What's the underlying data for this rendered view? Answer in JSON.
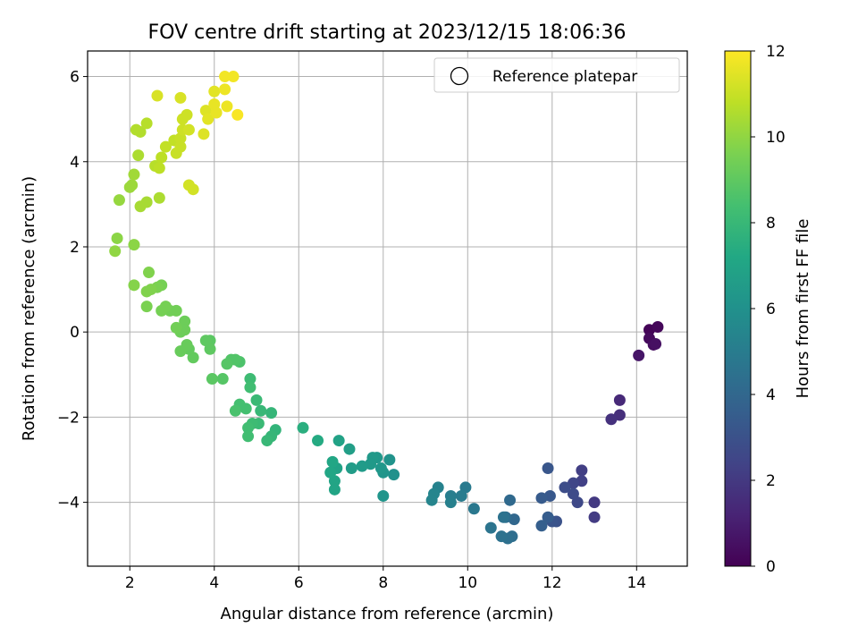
{
  "chart_data": {
    "type": "scatter",
    "title": "FOV centre drift starting at 2023/12/15 18:06:36",
    "xlabel": "Angular distance from reference (arcmin)",
    "ylabel": "Rotation from reference (arcmin)",
    "xlim": [
      1.0,
      15.2
    ],
    "ylim": [
      -5.5,
      6.6
    ],
    "xticks": [
      2,
      4,
      6,
      8,
      10,
      12,
      14
    ],
    "yticks": [
      -4,
      -2,
      0,
      2,
      4,
      6
    ],
    "grid": true,
    "legend": {
      "position": "upper right",
      "entries": [
        {
          "label": "Reference platepar",
          "marker": "open-circle"
        }
      ]
    },
    "colorbar": {
      "label": "Hours from first FF file",
      "colormap": "viridis",
      "range": [
        0,
        12
      ],
      "ticks": [
        0,
        2,
        4,
        6,
        8,
        10,
        12
      ]
    },
    "points": [
      {
        "x": 14.3,
        "y": 0.05,
        "c": 0.1
      },
      {
        "x": 14.5,
        "y": 0.12,
        "c": 0.2
      },
      {
        "x": 14.3,
        "y": -0.15,
        "c": 0.3
      },
      {
        "x": 14.4,
        "y": -0.3,
        "c": 0.4
      },
      {
        "x": 14.45,
        "y": -0.28,
        "c": 0.5
      },
      {
        "x": 14.05,
        "y": -0.55,
        "c": 0.7
      },
      {
        "x": 13.6,
        "y": -1.6,
        "c": 1.4
      },
      {
        "x": 13.6,
        "y": -1.95,
        "c": 1.6
      },
      {
        "x": 13.4,
        "y": -2.05,
        "c": 1.7
      },
      {
        "x": 13.0,
        "y": -4.0,
        "c": 2.0
      },
      {
        "x": 13.0,
        "y": -4.35,
        "c": 2.1
      },
      {
        "x": 12.7,
        "y": -3.25,
        "c": 2.2
      },
      {
        "x": 12.7,
        "y": -3.5,
        "c": 2.3
      },
      {
        "x": 12.5,
        "y": -3.55,
        "c": 2.5
      },
      {
        "x": 12.6,
        "y": -4.0,
        "c": 2.6
      },
      {
        "x": 12.5,
        "y": -3.8,
        "c": 2.7
      },
      {
        "x": 12.3,
        "y": -3.65,
        "c": 2.8
      },
      {
        "x": 12.1,
        "y": -4.45,
        "c": 3.0
      },
      {
        "x": 12.0,
        "y": -4.45,
        "c": 3.1
      },
      {
        "x": 11.9,
        "y": -3.2,
        "c": 3.2
      },
      {
        "x": 11.95,
        "y": -3.85,
        "c": 3.3
      },
      {
        "x": 11.75,
        "y": -3.9,
        "c": 3.4
      },
      {
        "x": 11.9,
        "y": -4.35,
        "c": 3.5
      },
      {
        "x": 11.75,
        "y": -4.55,
        "c": 3.6
      },
      {
        "x": 11.1,
        "y": -4.4,
        "c": 4.0
      },
      {
        "x": 11.0,
        "y": -3.95,
        "c": 4.1
      },
      {
        "x": 10.9,
        "y": -4.35,
        "c": 4.2
      },
      {
        "x": 11.05,
        "y": -4.8,
        "c": 4.3
      },
      {
        "x": 10.95,
        "y": -4.85,
        "c": 4.4
      },
      {
        "x": 10.8,
        "y": -4.8,
        "c": 4.5
      },
      {
        "x": 10.85,
        "y": -4.35,
        "c": 4.5
      },
      {
        "x": 10.55,
        "y": -4.6,
        "c": 4.6
      },
      {
        "x": 10.15,
        "y": -4.15,
        "c": 4.8
      },
      {
        "x": 9.95,
        "y": -3.65,
        "c": 4.9
      },
      {
        "x": 9.85,
        "y": -3.85,
        "c": 5.0
      },
      {
        "x": 9.6,
        "y": -3.85,
        "c": 5.1
      },
      {
        "x": 9.6,
        "y": -4.0,
        "c": 5.2
      },
      {
        "x": 9.3,
        "y": -3.65,
        "c": 5.3
      },
      {
        "x": 9.2,
        "y": -3.8,
        "c": 5.4
      },
      {
        "x": 9.15,
        "y": -3.95,
        "c": 5.4
      },
      {
        "x": 8.25,
        "y": -3.35,
        "c": 6.0
      },
      {
        "x": 8.15,
        "y": -3.0,
        "c": 6.1
      },
      {
        "x": 8.0,
        "y": -3.85,
        "c": 6.2
      },
      {
        "x": 8.0,
        "y": -3.3,
        "c": 6.2
      },
      {
        "x": 7.95,
        "y": -3.2,
        "c": 6.3
      },
      {
        "x": 7.85,
        "y": -2.95,
        "c": 6.3
      },
      {
        "x": 7.75,
        "y": -2.95,
        "c": 6.4
      },
      {
        "x": 7.7,
        "y": -3.1,
        "c": 6.4
      },
      {
        "x": 7.5,
        "y": -3.15,
        "c": 6.5
      },
      {
        "x": 7.25,
        "y": -3.2,
        "c": 6.6
      },
      {
        "x": 7.2,
        "y": -2.75,
        "c": 6.7
      },
      {
        "x": 6.95,
        "y": -2.55,
        "c": 6.9
      },
      {
        "x": 6.9,
        "y": -3.2,
        "c": 6.9
      },
      {
        "x": 6.85,
        "y": -3.5,
        "c": 7.0
      },
      {
        "x": 6.85,
        "y": -3.7,
        "c": 7.0
      },
      {
        "x": 6.8,
        "y": -3.05,
        "c": 7.1
      },
      {
        "x": 6.75,
        "y": -3.3,
        "c": 7.1
      },
      {
        "x": 6.45,
        "y": -2.55,
        "c": 7.3
      },
      {
        "x": 6.1,
        "y": -2.25,
        "c": 7.5
      },
      {
        "x": 5.45,
        "y": -2.3,
        "c": 7.8
      },
      {
        "x": 5.35,
        "y": -1.9,
        "c": 7.9
      },
      {
        "x": 5.35,
        "y": -2.45,
        "c": 7.9
      },
      {
        "x": 5.25,
        "y": -2.55,
        "c": 8.0
      },
      {
        "x": 5.1,
        "y": -1.85,
        "c": 8.0
      },
      {
        "x": 5.05,
        "y": -2.15,
        "c": 8.1
      },
      {
        "x": 5.0,
        "y": -1.6,
        "c": 8.1
      },
      {
        "x": 4.9,
        "y": -2.15,
        "c": 8.2
      },
      {
        "x": 4.85,
        "y": -1.1,
        "c": 8.2
      },
      {
        "x": 4.85,
        "y": -1.3,
        "c": 8.3
      },
      {
        "x": 4.8,
        "y": -2.25,
        "c": 8.3
      },
      {
        "x": 4.8,
        "y": -2.45,
        "c": 8.3
      },
      {
        "x": 4.75,
        "y": -1.8,
        "c": 8.4
      },
      {
        "x": 4.6,
        "y": -1.7,
        "c": 8.4
      },
      {
        "x": 4.5,
        "y": -1.85,
        "c": 8.5
      },
      {
        "x": 4.6,
        "y": -0.7,
        "c": 8.6
      },
      {
        "x": 4.5,
        "y": -0.65,
        "c": 8.7
      },
      {
        "x": 4.4,
        "y": -0.65,
        "c": 8.7
      },
      {
        "x": 4.3,
        "y": -0.75,
        "c": 8.8
      },
      {
        "x": 4.2,
        "y": -1.1,
        "c": 8.8
      },
      {
        "x": 3.95,
        "y": -1.1,
        "c": 8.9
      },
      {
        "x": 3.9,
        "y": -0.2,
        "c": 8.9
      },
      {
        "x": 3.9,
        "y": -0.4,
        "c": 9.0
      },
      {
        "x": 3.8,
        "y": -0.2,
        "c": 9.0
      },
      {
        "x": 3.5,
        "y": -0.6,
        "c": 9.1
      },
      {
        "x": 3.4,
        "y": -0.4,
        "c": 9.1
      },
      {
        "x": 3.35,
        "y": -0.3,
        "c": 9.2
      },
      {
        "x": 3.2,
        "y": -0.45,
        "c": 9.2
      },
      {
        "x": 3.3,
        "y": 0.25,
        "c": 9.3
      },
      {
        "x": 3.3,
        "y": 0.05,
        "c": 9.3
      },
      {
        "x": 3.2,
        "y": 0.0,
        "c": 9.3
      },
      {
        "x": 3.1,
        "y": 0.1,
        "c": 9.4
      },
      {
        "x": 3.1,
        "y": 0.5,
        "c": 9.4
      },
      {
        "x": 2.95,
        "y": 0.5,
        "c": 9.4
      },
      {
        "x": 2.85,
        "y": 0.6,
        "c": 9.5
      },
      {
        "x": 2.75,
        "y": 0.5,
        "c": 9.5
      },
      {
        "x": 2.75,
        "y": 1.1,
        "c": 9.5
      },
      {
        "x": 2.65,
        "y": 1.05,
        "c": 9.6
      },
      {
        "x": 2.4,
        "y": 0.6,
        "c": 9.6
      },
      {
        "x": 2.4,
        "y": 0.95,
        "c": 9.7
      },
      {
        "x": 2.5,
        "y": 1.0,
        "c": 9.7
      },
      {
        "x": 2.45,
        "y": 1.4,
        "c": 9.7
      },
      {
        "x": 2.1,
        "y": 1.1,
        "c": 9.8
      },
      {
        "x": 2.1,
        "y": 2.05,
        "c": 9.9
      },
      {
        "x": 1.7,
        "y": 2.2,
        "c": 9.9
      },
      {
        "x": 1.65,
        "y": 1.9,
        "c": 10.0
      },
      {
        "x": 1.75,
        "y": 3.1,
        "c": 10.1
      },
      {
        "x": 2.0,
        "y": 3.4,
        "c": 10.2
      },
      {
        "x": 2.05,
        "y": 3.45,
        "c": 10.2
      },
      {
        "x": 2.1,
        "y": 3.7,
        "c": 10.3
      },
      {
        "x": 2.25,
        "y": 2.95,
        "c": 10.4
      },
      {
        "x": 2.4,
        "y": 3.05,
        "c": 10.4
      },
      {
        "x": 2.7,
        "y": 3.15,
        "c": 10.5
      },
      {
        "x": 2.2,
        "y": 4.15,
        "c": 10.5
      },
      {
        "x": 2.15,
        "y": 4.75,
        "c": 10.6
      },
      {
        "x": 2.25,
        "y": 4.7,
        "c": 10.6
      },
      {
        "x": 2.4,
        "y": 4.9,
        "c": 10.7
      },
      {
        "x": 2.6,
        "y": 3.9,
        "c": 10.7
      },
      {
        "x": 2.7,
        "y": 3.85,
        "c": 10.8
      },
      {
        "x": 2.75,
        "y": 4.1,
        "c": 10.8
      },
      {
        "x": 2.85,
        "y": 4.35,
        "c": 10.9
      },
      {
        "x": 3.05,
        "y": 4.5,
        "c": 10.9
      },
      {
        "x": 3.1,
        "y": 4.2,
        "c": 11.0
      },
      {
        "x": 3.2,
        "y": 4.55,
        "c": 11.0
      },
      {
        "x": 3.2,
        "y": 4.35,
        "c": 11.0
      },
      {
        "x": 3.25,
        "y": 4.75,
        "c": 11.1
      },
      {
        "x": 3.25,
        "y": 5.0,
        "c": 11.1
      },
      {
        "x": 3.35,
        "y": 5.1,
        "c": 11.1
      },
      {
        "x": 3.4,
        "y": 4.75,
        "c": 11.2
      },
      {
        "x": 3.4,
        "y": 3.45,
        "c": 11.2
      },
      {
        "x": 3.5,
        "y": 3.35,
        "c": 11.2
      },
      {
        "x": 2.65,
        "y": 5.55,
        "c": 11.3
      },
      {
        "x": 3.2,
        "y": 5.5,
        "c": 11.3
      },
      {
        "x": 3.75,
        "y": 4.65,
        "c": 11.4
      },
      {
        "x": 3.8,
        "y": 5.2,
        "c": 11.4
      },
      {
        "x": 3.85,
        "y": 5.0,
        "c": 11.5
      },
      {
        "x": 4.0,
        "y": 5.65,
        "c": 11.5
      },
      {
        "x": 4.0,
        "y": 5.35,
        "c": 11.6
      },
      {
        "x": 4.05,
        "y": 5.15,
        "c": 11.6
      },
      {
        "x": 4.3,
        "y": 5.3,
        "c": 11.7
      },
      {
        "x": 4.25,
        "y": 5.7,
        "c": 11.7
      },
      {
        "x": 4.25,
        "y": 6.0,
        "c": 11.8
      },
      {
        "x": 4.45,
        "y": 6.0,
        "c": 11.8
      },
      {
        "x": 4.55,
        "y": 5.1,
        "c": 11.9
      }
    ]
  }
}
